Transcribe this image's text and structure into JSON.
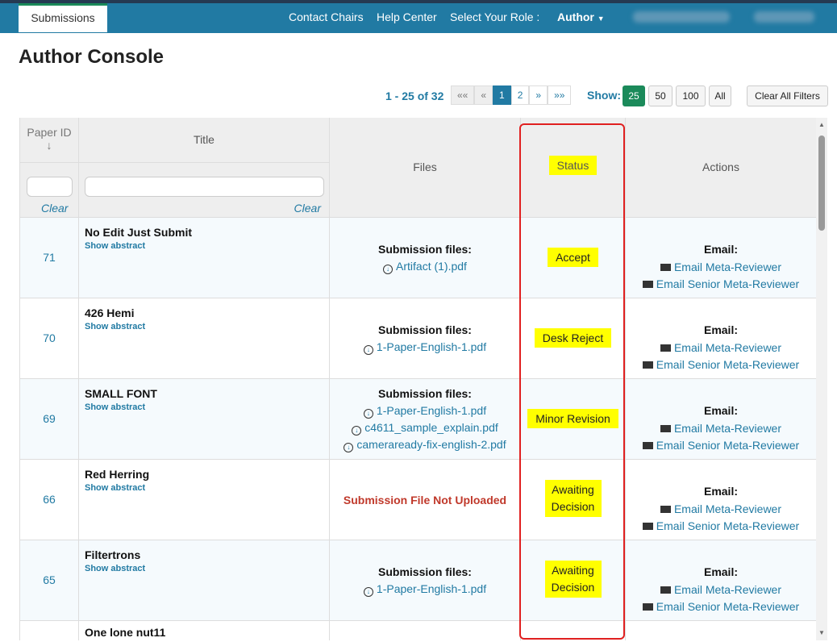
{
  "nav": {
    "tab": "Submissions",
    "contact": "Contact Chairs",
    "help": "Help Center",
    "role_label": "Select Your Role :",
    "role": "Author"
  },
  "page_title": "Author Console",
  "pager": {
    "range": "1 - 25 of 32",
    "first": "««",
    "prev": "«",
    "pages": [
      "1",
      "2"
    ],
    "next": "»",
    "last": "»»",
    "current_page": 1
  },
  "show": {
    "label": "Show:",
    "options": [
      "25",
      "50",
      "100",
      "All"
    ],
    "selected": "25"
  },
  "clear_all": "Clear All Filters",
  "headers": {
    "paper_id": "Paper ID",
    "sort": "↓",
    "title": "Title",
    "files": "Files",
    "status": "Status",
    "actions": "Actions",
    "clear": "Clear"
  },
  "rows": [
    {
      "id": "71",
      "title": "No Edit Just Submit",
      "abstract": "Show abstract",
      "files_label": "Submission files:",
      "files": [
        "Artifact (1).pdf"
      ],
      "status": "Accept"
    },
    {
      "id": "70",
      "title": "426 Hemi",
      "abstract": "Show abstract",
      "files_label": "Submission files:",
      "files": [
        "1-Paper-English-1.pdf"
      ],
      "status": "Desk Reject"
    },
    {
      "id": "69",
      "title": "SMALL FONT",
      "abstract": "Show abstract",
      "files_label": "Submission files:",
      "files": [
        "1-Paper-English-1.pdf",
        "c4611_sample_explain.pdf",
        "cameraready-fix-english-2.pdf"
      ],
      "status": "Minor Revision"
    },
    {
      "id": "66",
      "title": "Red Herring",
      "abstract": "Show abstract",
      "files_missing": "Submission File Not Uploaded",
      "status": "Awaiting Decision"
    },
    {
      "id": "65",
      "title": "Filtertrons",
      "abstract": "Show abstract",
      "files_label": "Submission files:",
      "files": [
        "1-Paper-English-1.pdf"
      ],
      "status": "Awaiting Decision"
    },
    {
      "id": "",
      "title": "One lone nut11"
    }
  ],
  "actions": {
    "email_label": "Email:",
    "meta": "Email Meta-Reviewer",
    "senior": "Email Senior Meta-Reviewer"
  },
  "colors": {
    "nav": "#217aa3",
    "highlight": "#ffff00",
    "annotation": "#e02020",
    "missing": "#c0392b"
  }
}
